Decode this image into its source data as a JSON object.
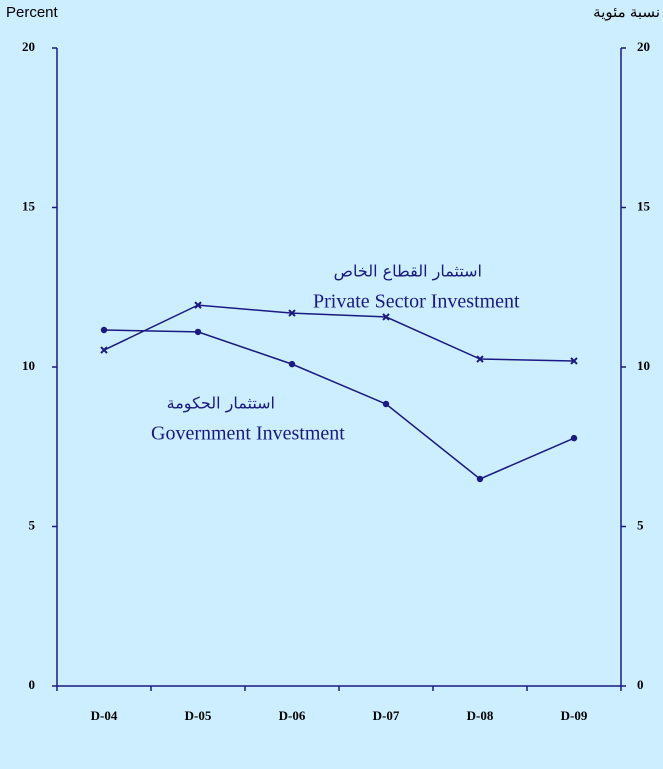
{
  "chart_data": {
    "type": "line",
    "y_label": "Percent",
    "y2_label": "نسبة مئوية",
    "categories": [
      "D-04",
      "D-05",
      "D-06",
      "D-07",
      "D-08",
      "D-09"
    ],
    "series": [
      {
        "name": "Private Sector Investment",
        "color": "#1a1a80",
        "marker": "x",
        "values": [
          10.53,
          11.94,
          11.69,
          11.57,
          10.25,
          10.19
        ]
      },
      {
        "name": "Government Investment",
        "color": "#1a1a80",
        "marker": "circle",
        "values": [
          11.16,
          11.1,
          10.09,
          8.84,
          6.49,
          7.77
        ]
      }
    ],
    "annotations": [
      "استثمار القطاع الخاص",
      "Private Sector Investment",
      "استثمار الحكومة",
      "Government Investment"
    ],
    "ylim": [
      0,
      20
    ],
    "yticks": [
      0,
      5,
      10,
      15,
      20
    ],
    "y2lim": [
      0,
      20
    ],
    "y2ticks": [
      0,
      5,
      10,
      15,
      20
    ],
    "grid": false
  }
}
